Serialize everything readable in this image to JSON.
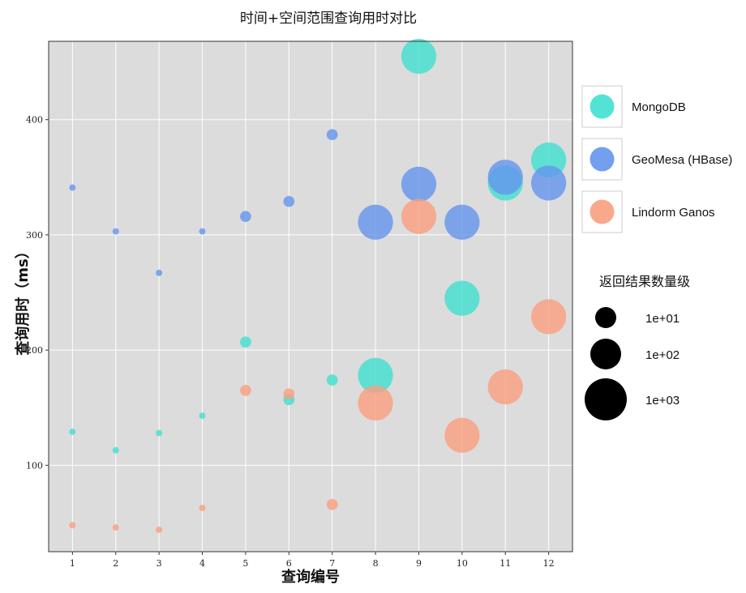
{
  "chart_data": {
    "type": "scatter",
    "title": "时间+空间范围查询用时对比",
    "xlabel": "查询编号",
    "ylabel": "查询用时（ms）",
    "x": [
      1,
      2,
      3,
      4,
      5,
      6,
      7,
      8,
      9,
      10,
      11,
      12
    ],
    "xlim": [
      0.45,
      12.55
    ],
    "ylim": [
      25,
      468
    ],
    "xticks": [
      1,
      2,
      3,
      4,
      5,
      6,
      7,
      8,
      9,
      10,
      11,
      12
    ],
    "yticks": [
      100,
      200,
      300,
      400
    ],
    "grid": true,
    "legend_placement": "right",
    "series": [
      {
        "name": "MongoDB",
        "color": "#40e0d0",
        "y": [
          129,
          113,
          128,
          143,
          207,
          157,
          174,
          178,
          455,
          245,
          345,
          365
        ],
        "size": [
          10,
          10,
          10,
          10,
          30,
          30,
          30,
          300,
          300,
          300,
          300,
          300
        ]
      },
      {
        "name": "GeoMesa (HBase)",
        "color": "#6495ed",
        "y": [
          341,
          303,
          267,
          303,
          316,
          329,
          387,
          311,
          344,
          311,
          350,
          345
        ],
        "size": [
          10,
          10,
          10,
          10,
          30,
          30,
          30,
          300,
          300,
          300,
          300,
          300
        ]
      },
      {
        "name": "Lindorm Ganos",
        "color": "#fa9f7f",
        "y": [
          48,
          46,
          44,
          63,
          165,
          162,
          66,
          154,
          316,
          126,
          168,
          229
        ],
        "size": [
          10,
          10,
          10,
          10,
          30,
          30,
          30,
          300,
          300,
          300,
          300,
          300
        ]
      }
    ],
    "size_legend": {
      "title": "返回结果数量级",
      "entries": [
        {
          "label": "1e+01",
          "value": 10
        },
        {
          "label": "1e+02",
          "value": 100
        },
        {
          "label": "1e+03",
          "value": 1000
        }
      ],
      "color": "#000000"
    },
    "plot_background": "#dcdcdc"
  }
}
